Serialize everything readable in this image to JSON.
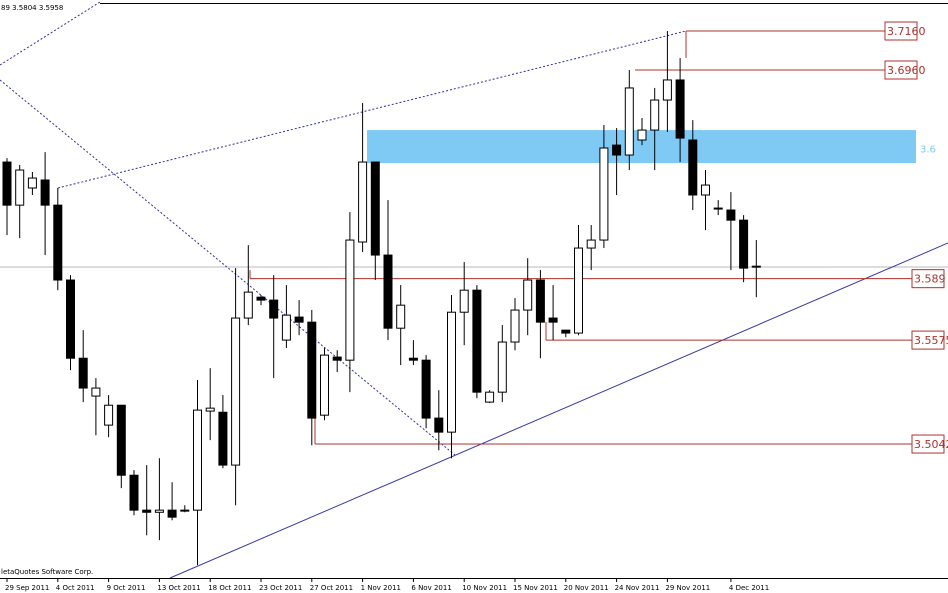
{
  "header": "89 3.5804 3.5958",
  "footer": "letaQuotes Software Corp.",
  "chart_data": {
    "type": "candlestick",
    "categories": [
      "29 Sep 2011",
      null,
      null,
      null,
      "4 Oct 2011",
      null,
      null,
      null,
      "9 Oct 2011",
      null,
      null,
      null,
      "13 Oct 2011",
      null,
      null,
      null,
      "18 Oct 2011",
      null,
      null,
      null,
      "23 Oct 2011",
      null,
      null,
      null,
      "27 Oct 2011",
      null,
      null,
      null,
      "1 Nov 2011",
      null,
      null,
      null,
      "6 Nov 2011",
      null,
      null,
      null,
      "10 Nov 2011",
      null,
      null,
      null,
      "15 Nov 2011",
      null,
      null,
      null,
      "20 Nov 2011",
      null,
      null,
      null,
      "24 Nov 2011",
      null,
      null,
      null,
      "29 Nov 2011",
      null,
      null,
      null,
      null,
      "4 Dec 2011",
      null,
      null
    ],
    "open": [
      3.6488,
      3.6267,
      3.6355,
      3.6396,
      3.6267,
      3.5883,
      3.5482,
      3.5288,
      3.5139,
      3.5241,
      3.4882,
      3.4703,
      3.4692,
      3.4703,
      3.4698,
      3.4703,
      3.5211,
      3.5205,
      3.4934,
      3.5688,
      3.5795,
      3.578,
      3.5575,
      3.5693,
      3.5667,
      3.519,
      3.5488,
      3.5472,
      3.6078,
      3.6488,
      3.6011,
      3.5636,
      3.5482,
      3.5472,
      3.5175,
      3.5103,
      3.5718,
      3.5831,
      3.5257,
      3.5308,
      3.5565,
      3.5729,
      3.5883,
      3.5688,
      3.5626,
      3.5611,
      3.6047,
      3.6088,
      3.6575,
      3.6524,
      3.6601,
      3.6652,
      3.6806,
      3.6909,
      3.6601,
      3.6319,
      3.6252,
      3.6242,
      3.619,
      3.5954
    ],
    "high": [
      3.6508,
      3.6473,
      3.6437,
      3.6539,
      3.6355,
      3.5908,
      3.5626,
      3.538,
      3.5293,
      3.5241,
      3.4908,
      3.4934,
      3.4969,
      3.4846,
      3.4728,
      3.537,
      3.5431,
      3.5293,
      3.5944,
      3.6062,
      3.5806,
      3.5908,
      3.5857,
      3.578,
      3.5729,
      3.5534,
      3.5523,
      3.6231,
      3.6791,
      3.6488,
      3.6293,
      3.5857,
      3.5575,
      3.5498,
      3.5318,
      3.5806,
      3.5975,
      3.5857,
      3.5318,
      3.5652,
      3.579,
      3.5995,
      3.5934,
      3.5857,
      3.5626,
      3.6165,
      3.6165,
      3.6678,
      3.6662,
      3.696,
      3.6714,
      3.6868,
      3.716,
      3.7021,
      3.6703,
      3.6447,
      3.6293,
      3.6334,
      3.6216,
      3.6088
    ],
    "low": [
      3.6113,
      3.6098,
      3.6319,
      3.6011,
      3.5831,
      3.5421,
      3.5257,
      3.5087,
      3.5077,
      3.4816,
      3.4677,
      3.4574,
      3.4549,
      3.4651,
      3.4692,
      3.4421,
      3.5062,
      3.4918,
      3.4728,
      3.5652,
      3.5754,
      3.538,
      3.5534,
      3.56,
      3.5036,
      3.5164,
      3.5411,
      3.5308,
      3.6026,
      3.5883,
      3.5575,
      3.5447,
      3.5447,
      3.5123,
      3.501,
      3.4969,
      3.5549,
      3.5277,
      3.5252,
      3.5257,
      3.5523,
      3.56,
      3.5482,
      3.5575,
      3.559,
      3.56,
      3.5934,
      3.6047,
      3.6319,
      3.6447,
      3.6575,
      3.6447,
      3.6642,
      3.6488,
      3.6242,
      3.6139,
      3.6216,
      3.5934,
      3.5872,
      3.5795
    ],
    "close": [
      3.6267,
      3.6447,
      3.6406,
      3.6267,
      3.5883,
      3.5482,
      3.5329,
      3.5329,
      3.5241,
      3.4882,
      3.4703,
      3.4692,
      3.4703,
      3.4667,
      3.4703,
      3.5216,
      3.5226,
      3.4934,
      3.5688,
      3.5821,
      3.578,
      3.5688,
      3.5703,
      3.5667,
      3.5175,
      3.5498,
      3.5472,
      3.6088,
      3.6488,
      3.6011,
      3.5636,
      3.5754,
      3.5472,
      3.5175,
      3.5103,
      3.5718,
      3.5831,
      3.5308,
      3.5308,
      3.5565,
      3.5729,
      3.5883,
      3.5667,
      3.5667,
      3.5611,
      3.6047,
      3.6088,
      3.656,
      3.6524,
      3.6868,
      3.6652,
      3.6806,
      3.6909,
      3.6611,
      3.6319,
      3.637,
      3.6247,
      3.619,
      3.5944,
      3.5949
    ],
    "up_color": "#ffffff",
    "down_color": "#000000",
    "ylim": [
      3.4355,
      3.7319
    ],
    "levels": [
      {
        "value": 3.716,
        "label": "3.7160"
      },
      {
        "value": 3.696,
        "label": "3.6960"
      },
      3.589,
      3.5575,
      3.5042
    ],
    "level_color": "#b0302c",
    "zone": {
      "high": 3.6652,
      "low": 3.6483,
      "label": "3.6",
      "color": "#7fcaf5"
    }
  }
}
